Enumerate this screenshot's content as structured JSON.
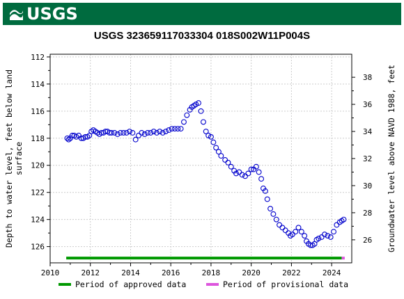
{
  "header": {
    "logo_text": "USGS",
    "logo_icon": "usgs-wave-icon",
    "banner_color": "#006b3f"
  },
  "chart_data": {
    "type": "scatter",
    "title": "USGS 323659117033304 018S002W11P004S",
    "ylabel_left": [
      "Depth to water level, feet below land",
      "surface"
    ],
    "ylabel_right": "Groundwater level above NAVD 1988, feet",
    "xlim": [
      2010,
      2025
    ],
    "ylim_left": [
      127.2,
      111.8
    ],
    "ylim_right": [
      24.3,
      39.7
    ],
    "xticks": [
      2010,
      2012,
      2014,
      2016,
      2018,
      2020,
      2022,
      2024
    ],
    "yticks_left": [
      112,
      114,
      116,
      118,
      120,
      122,
      124,
      126
    ],
    "yticks_right": [
      26,
      28,
      30,
      32,
      34,
      36,
      38
    ],
    "grid": true,
    "marker_color": "#0000cc",
    "series": [
      {
        "x": [
          2010.85,
          2010.92,
          2011.0,
          2011.1,
          2011.2,
          2011.3,
          2011.42,
          2011.55,
          2011.65,
          2011.75,
          2011.85,
          2011.95,
          2012.05,
          2012.15,
          2012.25,
          2012.35,
          2012.45,
          2012.55,
          2012.65,
          2012.75,
          2012.85,
          2012.95,
          2013.05,
          2013.2,
          2013.35,
          2013.5,
          2013.65,
          2013.8,
          2013.95,
          2014.1,
          2014.25,
          2014.4,
          2014.55,
          2014.7,
          2014.85,
          2015.0,
          2015.15,
          2015.3,
          2015.45,
          2015.6,
          2015.75,
          2015.9,
          2016.05,
          2016.2,
          2016.35,
          2016.5,
          2016.65,
          2016.8,
          2016.95,
          2017.05,
          2017.15,
          2017.25,
          2017.38,
          2017.5,
          2017.62,
          2017.75,
          2017.87,
          2018.0,
          2018.12,
          2018.25,
          2018.38,
          2018.5,
          2018.7,
          2018.85,
          2019.0,
          2019.15,
          2019.25,
          2019.4,
          2019.55,
          2019.7,
          2019.85,
          2020.0,
          2020.12,
          2020.25,
          2020.38,
          2020.5,
          2020.6,
          2020.7,
          2020.8,
          2020.95,
          2021.1,
          2021.25,
          2021.4,
          2021.55,
          2021.7,
          2021.85,
          2021.95,
          2022.05,
          2022.2,
          2022.35,
          2022.5,
          2022.65,
          2022.75,
          2022.85,
          2022.95,
          2023.05,
          2023.15,
          2023.25,
          2023.35,
          2023.5,
          2023.65,
          2023.8,
          2023.95,
          2024.1,
          2024.25,
          2024.4,
          2024.5,
          2024.6
        ],
        "y": [
          118.0,
          118.1,
          118.0,
          117.8,
          117.8,
          117.9,
          117.8,
          118.0,
          118.0,
          117.9,
          117.9,
          117.8,
          117.5,
          117.4,
          117.5,
          117.6,
          117.7,
          117.6,
          117.6,
          117.5,
          117.5,
          117.6,
          117.6,
          117.6,
          117.7,
          117.6,
          117.6,
          117.6,
          117.5,
          117.6,
          118.1,
          117.8,
          117.6,
          117.7,
          117.6,
          117.6,
          117.5,
          117.6,
          117.5,
          117.6,
          117.5,
          117.4,
          117.3,
          117.3,
          117.3,
          117.3,
          116.8,
          116.3,
          115.9,
          115.7,
          115.6,
          115.5,
          115.4,
          116.0,
          116.8,
          117.5,
          117.8,
          117.9,
          118.3,
          118.7,
          119.0,
          119.3,
          119.6,
          119.8,
          120.1,
          120.4,
          120.6,
          120.5,
          120.7,
          120.8,
          120.6,
          120.3,
          120.3,
          120.1,
          120.5,
          121.0,
          121.7,
          121.9,
          122.5,
          123.2,
          123.6,
          124.0,
          124.4,
          124.6,
          124.8,
          125.0,
          125.2,
          125.1,
          124.9,
          124.6,
          124.9,
          125.2,
          125.6,
          125.8,
          125.9,
          125.9,
          125.8,
          125.5,
          125.4,
          125.3,
          125.1,
          125.2,
          125.3,
          124.9,
          124.4,
          124.2,
          124.1,
          124.0
        ]
      }
    ],
    "periods": [
      {
        "label": "Period of approved data",
        "start": 2010.8,
        "end": 2024.5,
        "color": "#009900"
      },
      {
        "label": "Period of provisional data",
        "start": 2024.5,
        "end": 2024.65,
        "color": "#dd55dd"
      }
    ]
  }
}
